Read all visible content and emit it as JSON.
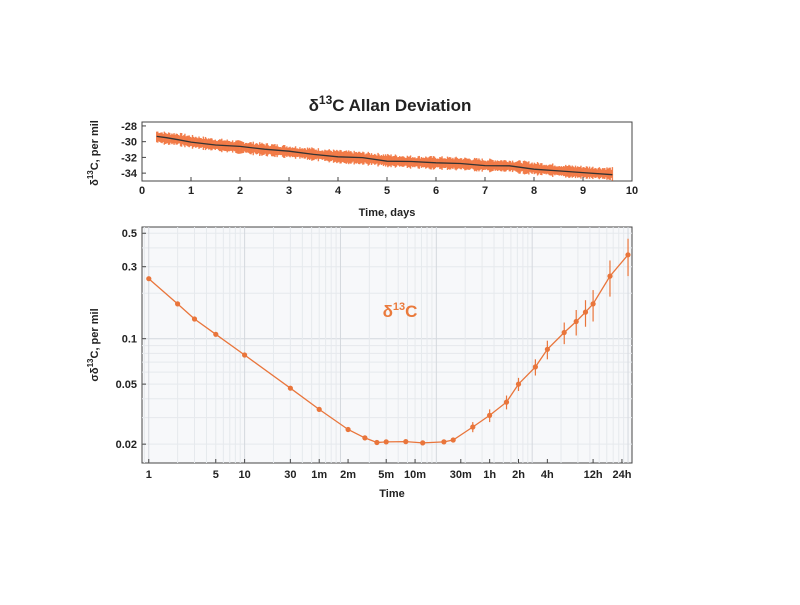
{
  "chart_data": [
    {
      "type": "line",
      "title": "δ13C Allan Deviation",
      "title_base": "δ",
      "title_sup": "13",
      "title_rest": "C Allan Deviation",
      "xlabel": "Time, days",
      "ylabel_base": "δ",
      "ylabel_sup": "13",
      "ylabel_rest": "C, per mil",
      "xlim": [
        0,
        10
      ],
      "ylim": [
        -35,
        -27.5
      ],
      "x_ticks": [
        0,
        1,
        2,
        3,
        4,
        5,
        6,
        7,
        8,
        9,
        10
      ],
      "y_ticks": [
        -28,
        -30,
        -32,
        -34
      ],
      "grid": false,
      "series": [
        {
          "color": "#f06a30",
          "trend_color": "#333333",
          "x": [
            0.3,
            0.5,
            0.75,
            1.0,
            1.5,
            2.0,
            2.5,
            3.0,
            3.5,
            4.0,
            4.5,
            5.0,
            5.5,
            6.0,
            6.5,
            7.0,
            7.5,
            8.0,
            8.5,
            9.0,
            9.6
          ],
          "y": [
            -29.4,
            -29.6,
            -29.7,
            -30.0,
            -30.4,
            -30.7,
            -31.0,
            -31.3,
            -31.6,
            -31.9,
            -32.1,
            -32.4,
            -32.6,
            -32.7,
            -32.8,
            -33.0,
            -33.1,
            -33.4,
            -33.7,
            -33.9,
            -34.1
          ],
          "band": 0.8
        }
      ]
    },
    {
      "type": "line",
      "label_base": "δ",
      "label_sup": "13",
      "label_rest": "C",
      "xlabel": "Time",
      "ylabel_base": "σδ",
      "ylabel_sup": "13",
      "ylabel_rest": "C, per mil",
      "x_scale": "log",
      "y_scale": "log",
      "xlim_seconds": [
        0.85,
        110000
      ],
      "ylim": [
        0.015,
        0.55
      ],
      "grid": true,
      "x_ticks": [
        {
          "v": 1,
          "label": "1"
        },
        {
          "v": 5,
          "label": "5"
        },
        {
          "v": 10,
          "label": "10"
        },
        {
          "v": 30,
          "label": "30"
        },
        {
          "v": 60,
          "label": "1m"
        },
        {
          "v": 120,
          "label": "2m"
        },
        {
          "v": 300,
          "label": "5m"
        },
        {
          "v": 600,
          "label": "10m"
        },
        {
          "v": 1800,
          "label": "30m"
        },
        {
          "v": 3600,
          "label": "1h"
        },
        {
          "v": 7200,
          "label": "2h"
        },
        {
          "v": 14400,
          "label": "4h"
        },
        {
          "v": 43200,
          "label": "12h"
        },
        {
          "v": 86400,
          "label": "24h"
        }
      ],
      "y_ticks": [
        {
          "v": 0.5,
          "label": "0.5"
        },
        {
          "v": 0.3,
          "label": "0.3"
        },
        {
          "v": 0.1,
          "label": "0.1"
        },
        {
          "v": 0.05,
          "label": "0.05"
        },
        {
          "v": 0.02,
          "label": "0.02"
        }
      ],
      "series": [
        {
          "color": "#e9753b",
          "x": [
            1,
            2,
            3,
            5,
            10,
            30,
            60,
            120,
            180,
            240,
            300,
            480,
            720,
            1200,
            1500,
            2400,
            3600,
            5400,
            7200,
            10800,
            14400,
            21600,
            28800,
            36000,
            43200,
            64800,
            100000
          ],
          "y": [
            0.25,
            0.17,
            0.135,
            0.107,
            0.078,
            0.047,
            0.034,
            0.025,
            0.022,
            0.0205,
            0.0207,
            0.0208,
            0.0204,
            0.0207,
            0.0213,
            0.026,
            0.031,
            0.038,
            0.05,
            0.065,
            0.085,
            0.11,
            0.13,
            0.15,
            0.17,
            0.26,
            0.36
          ],
          "err": [
            0,
            0,
            0,
            0,
            0,
            0,
            0,
            0,
            0,
            0,
            0,
            0,
            0,
            0,
            0,
            0.002,
            0.003,
            0.004,
            0.005,
            0.008,
            0.012,
            0.018,
            0.025,
            0.03,
            0.04,
            0.07,
            0.1
          ]
        }
      ]
    }
  ]
}
